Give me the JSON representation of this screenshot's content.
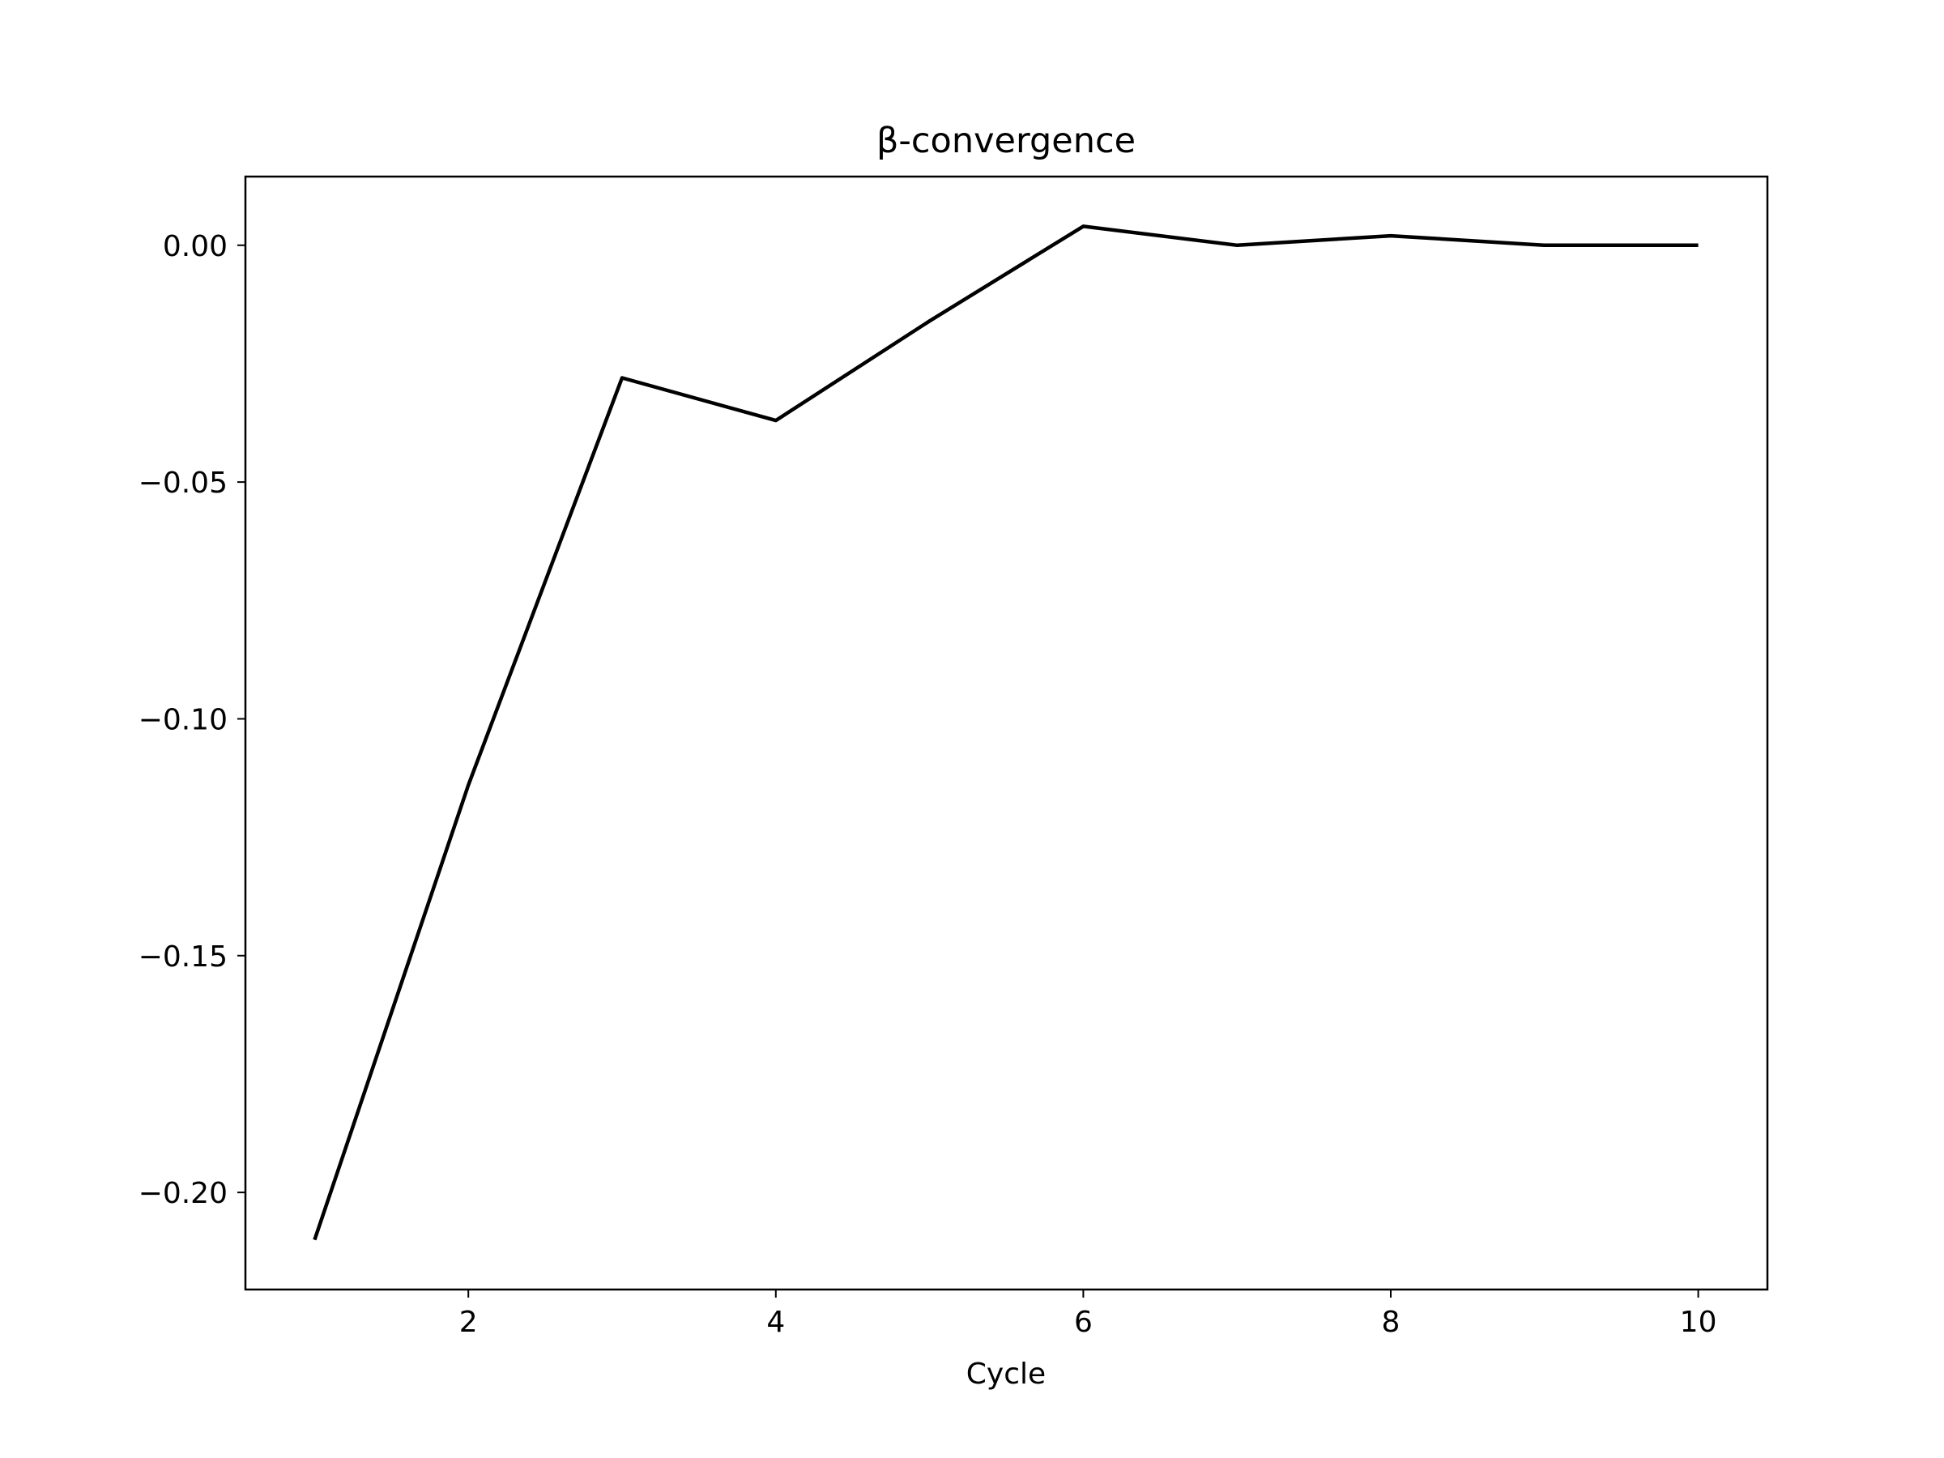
{
  "chart_data": {
    "type": "line",
    "title": "β-convergence",
    "xlabel": "Cycle",
    "ylabel": "",
    "xlim": [
      0.55,
      10.45
    ],
    "ylim": [
      -0.2205,
      0.0145
    ],
    "x_ticks": [
      2,
      4,
      6,
      8,
      10
    ],
    "x_tick_labels": [
      "2",
      "4",
      "6",
      "8",
      "10"
    ],
    "y_ticks": [
      0.0,
      -0.05,
      -0.1,
      -0.15,
      -0.2
    ],
    "y_tick_labels": [
      "0.00",
      "−0.05",
      "−0.10",
      "−0.15",
      "−0.20"
    ],
    "grid": false,
    "legend": "none",
    "series": [
      {
        "color": "#000000",
        "x": [
          1,
          2,
          3,
          4,
          5,
          6,
          7,
          8,
          9,
          10
        ],
        "y": [
          -0.21,
          -0.114,
          -0.028,
          -0.037,
          -0.016,
          0.004,
          0.0,
          0.002,
          0.0,
          0.0
        ]
      }
    ]
  }
}
